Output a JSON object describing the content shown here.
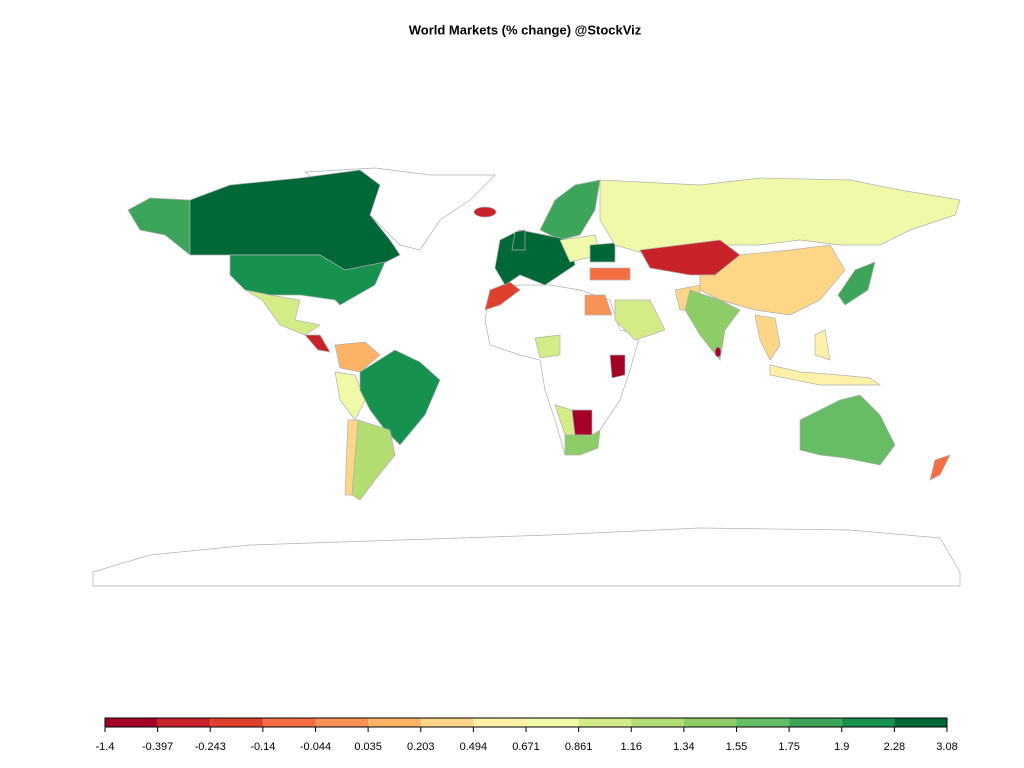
{
  "title": "World Markets (% change) @StockViz",
  "legend": {
    "breaks": [
      -1.4,
      -0.397,
      -0.243,
      -0.14,
      -0.044,
      0.035,
      0.203,
      0.494,
      0.671,
      0.861,
      1.16,
      1.34,
      1.55,
      1.75,
      1.9,
      2.28,
      3.08
    ],
    "colors": [
      "#a50026",
      "#c9232a",
      "#df3f2d",
      "#f46d43",
      "#f99355",
      "#fdb365",
      "#fed687",
      "#fff1a8",
      "#f0f9a8",
      "#d4ec88",
      "#b3dd72",
      "#8ccd67",
      "#66bd63",
      "#3ca55a",
      "#17914f",
      "#006837"
    ]
  }
}
